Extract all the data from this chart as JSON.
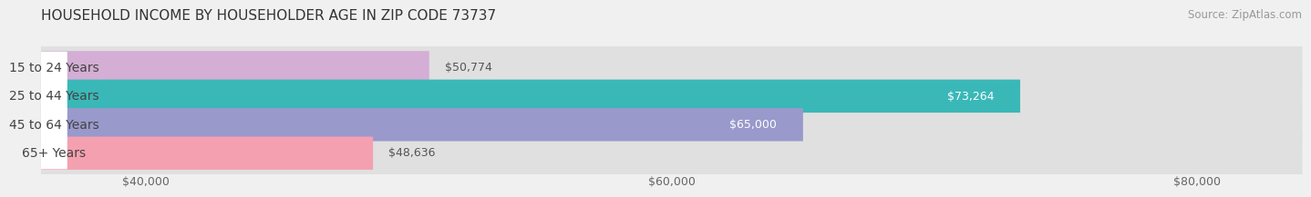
{
  "title": "HOUSEHOLD INCOME BY HOUSEHOLDER AGE IN ZIP CODE 73737",
  "source": "Source: ZipAtlas.com",
  "categories": [
    "15 to 24 Years",
    "25 to 44 Years",
    "45 to 64 Years",
    "65+ Years"
  ],
  "values": [
    50774,
    73264,
    65000,
    48636
  ],
  "bar_colors": [
    "#d4aed4",
    "#3ab8b8",
    "#9999cc",
    "#f4a0b0"
  ],
  "bar_labels": [
    "$50,774",
    "$73,264",
    "$65,000",
    "$48,636"
  ],
  "label_in_bar": [
    false,
    true,
    true,
    false
  ],
  "xlim_min": 36000,
  "xlim_max": 84000,
  "xticks": [
    40000,
    60000,
    80000
  ],
  "xtick_labels": [
    "$40,000",
    "$60,000",
    "$80,000"
  ],
  "background_color": "#f0f0f0",
  "bar_background_color": "#e0e0e0",
  "white_label_bg": "#ffffff",
  "title_fontsize": 11,
  "source_fontsize": 8.5,
  "bar_label_fontsize": 9,
  "cat_label_fontsize": 10,
  "tick_fontsize": 9
}
